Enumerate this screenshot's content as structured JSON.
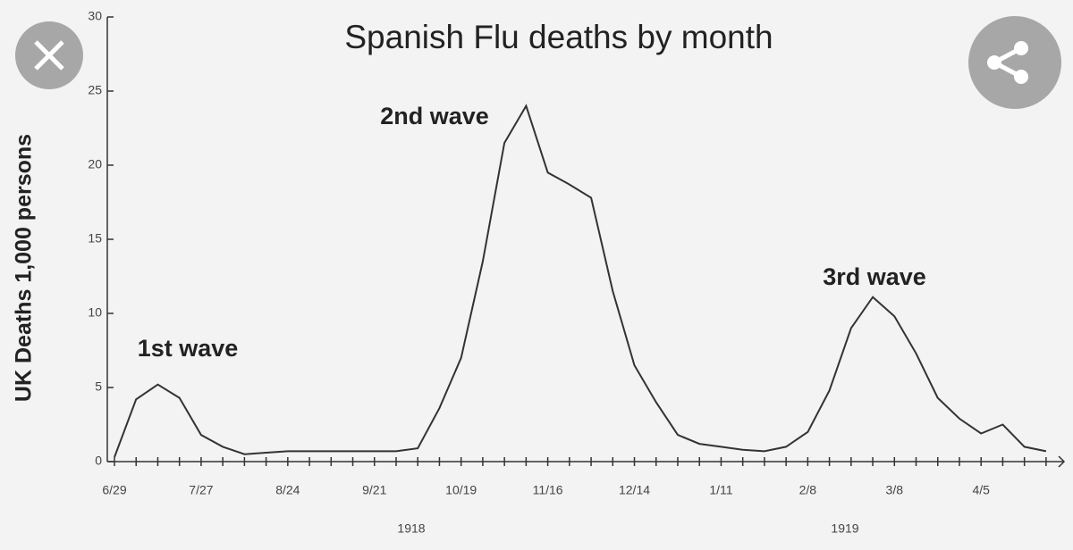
{
  "chart_data": {
    "type": "line",
    "title": "Spanish Flu deaths by month",
    "ylabel": "UK Deaths 1,000 persons",
    "categories": [
      "6/29",
      null,
      null,
      null,
      "7/27",
      null,
      null,
      null,
      "8/24",
      null,
      null,
      null,
      "9/21",
      null,
      null,
      null,
      "10/19",
      null,
      null,
      null,
      "11/16",
      null,
      null,
      null,
      "12/14",
      null,
      null,
      null,
      "1/11",
      null,
      null,
      null,
      "2/8",
      null,
      null,
      null,
      "3/8",
      null,
      null,
      null,
      "4/5",
      null,
      null,
      null
    ],
    "values": [
      0.3,
      4.2,
      5.2,
      4.3,
      1.8,
      1.0,
      0.5,
      0.6,
      0.7,
      0.7,
      0.7,
      0.7,
      0.7,
      0.7,
      0.9,
      3.6,
      7.0,
      13.5,
      21.5,
      24.0,
      19.5,
      18.7,
      17.8,
      11.5,
      6.5,
      4.0,
      1.8,
      1.2,
      1.0,
      0.8,
      0.7,
      1.0,
      2.0,
      4.8,
      9.0,
      11.1,
      9.8,
      7.3,
      4.3,
      2.9,
      1.9,
      2.5,
      1.0,
      0.7
    ],
    "color": "#333333",
    "ylim": [
      0,
      30
    ],
    "yticks": [
      0,
      5,
      10,
      15,
      20,
      25,
      30
    ],
    "year_labels": [
      "1918",
      "1919"
    ],
    "annotations": [
      "1st wave",
      "2nd wave",
      "3rd wave"
    ]
  }
}
